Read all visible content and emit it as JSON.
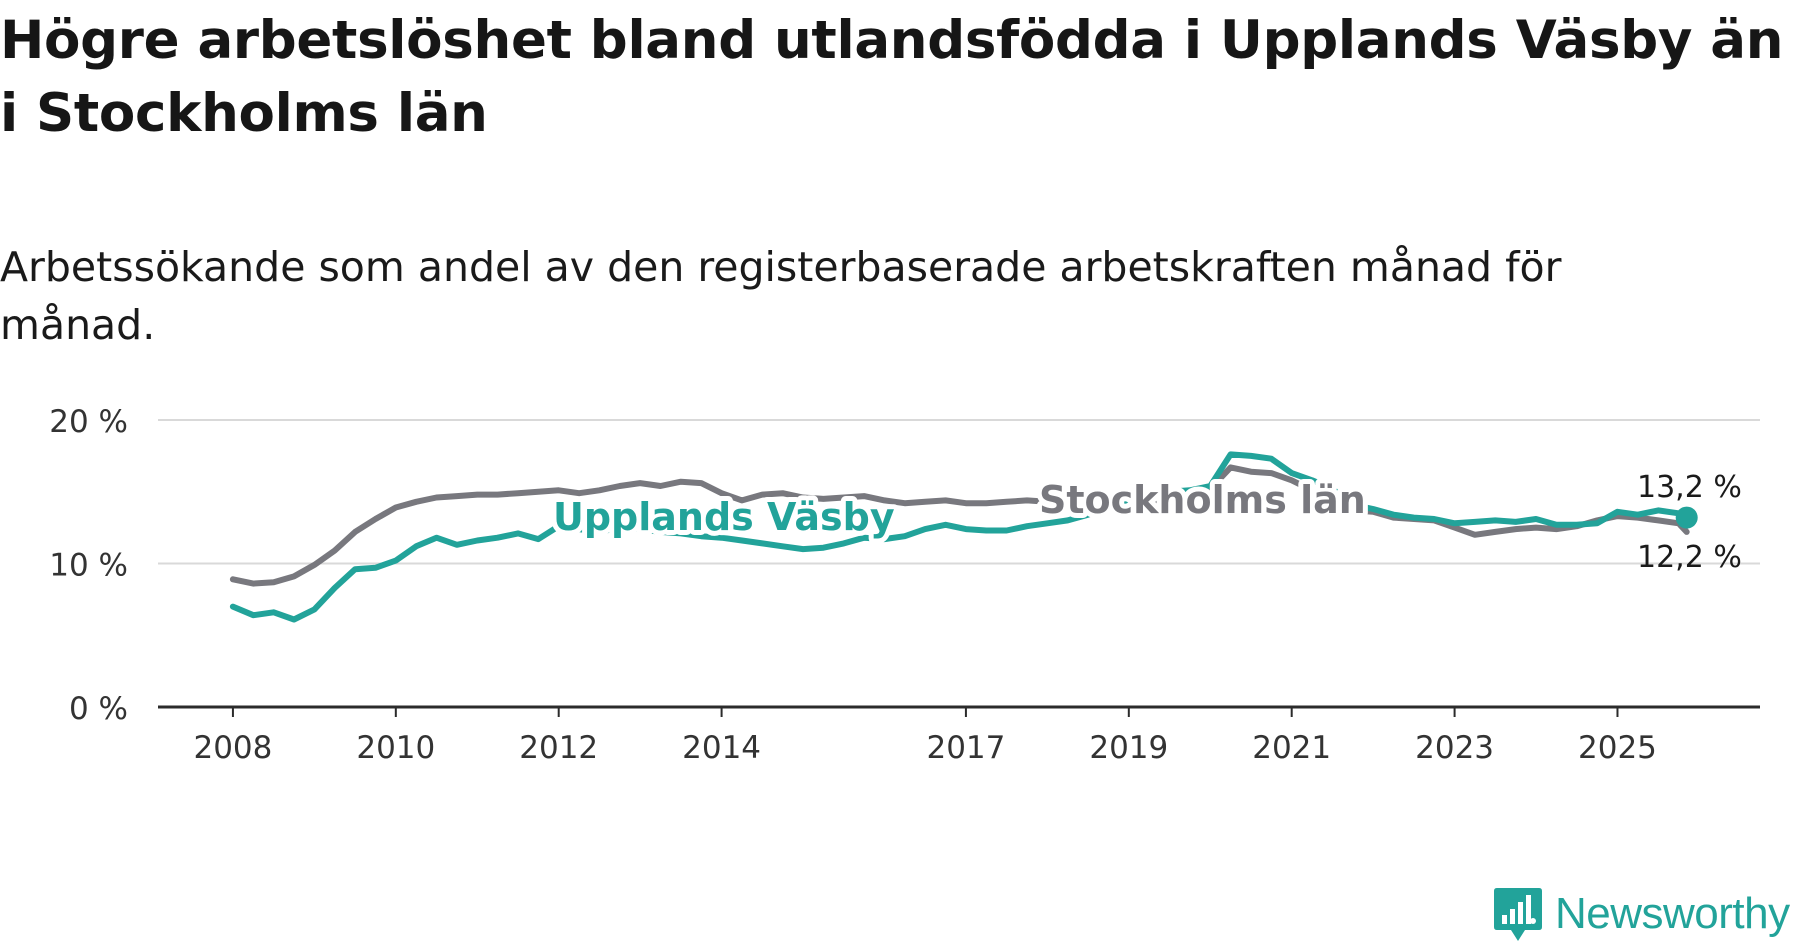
{
  "title": "Högre arbetslöshet bland utlandsfödda i Upplands Väsby än i Stockholms län",
  "subtitle": "Arbetssökande som andel av den registerbaserade arbetskraften månad för månad.",
  "brand": {
    "name": "Newsworthy"
  },
  "colors": {
    "accent": "#22a39a",
    "gray_line": "#78787e",
    "axis": "#2b2b2b",
    "grid": "#d9d9d9"
  },
  "chart_data": {
    "type": "line",
    "title": "Högre arbetslöshet bland utlandsfödda i Upplands Väsby än i Stockholms län",
    "subtitle": "Arbetssökande som andel av den registerbaserade arbetskraften månad för månad.",
    "xlabel": "",
    "ylabel": "",
    "ylim": [
      0,
      20
    ],
    "yticks": [
      {
        "value": 0,
        "label": "0 %"
      },
      {
        "value": 10,
        "label": "10 %"
      },
      {
        "value": 20,
        "label": "20 %"
      }
    ],
    "xticks": [
      {
        "value": 2008,
        "label": "2008"
      },
      {
        "value": 2010,
        "label": "2010"
      },
      {
        "value": 2012,
        "label": "2012"
      },
      {
        "value": 2014,
        "label": "2014"
      },
      {
        "value": 2017,
        "label": "2017"
      },
      {
        "value": 2019,
        "label": "2019"
      },
      {
        "value": 2021,
        "label": "2021"
      },
      {
        "value": 2023,
        "label": "2023"
      },
      {
        "value": 2025,
        "label": "2025"
      }
    ],
    "xlim": [
      2007.08,
      2026.75
    ],
    "grid": true,
    "series": [
      {
        "name": "Stockholms län",
        "color": "#78787e",
        "label": "Stockholms län",
        "end_label": "12,2 %",
        "x": [
          2008.0,
          2008.25,
          2008.5,
          2008.75,
          2009.0,
          2009.25,
          2009.5,
          2009.75,
          2010.0,
          2010.25,
          2010.5,
          2010.75,
          2011.0,
          2011.25,
          2011.5,
          2011.75,
          2012.0,
          2012.25,
          2012.5,
          2012.75,
          2013.0,
          2013.25,
          2013.5,
          2013.75,
          2014.0,
          2014.25,
          2014.5,
          2014.75,
          2015.0,
          2015.25,
          2015.5,
          2015.75,
          2016.0,
          2016.25,
          2016.5,
          2016.75,
          2017.0,
          2017.25,
          2017.5,
          2017.75,
          2018.0,
          2018.25,
          2018.5,
          2018.75,
          2019.0,
          2019.25,
          2019.5,
          2019.75,
          2020.0,
          2020.25,
          2020.5,
          2020.75,
          2021.0,
          2021.25,
          2021.5,
          2021.75,
          2022.0,
          2022.25,
          2022.5,
          2022.75,
          2023.0,
          2023.25,
          2023.5,
          2023.75,
          2024.0,
          2024.25,
          2024.5,
          2024.75,
          2025.0,
          2025.25,
          2025.5,
          2025.75,
          2025.85
        ],
        "values": [
          8.9,
          8.6,
          8.7,
          9.1,
          9.9,
          10.9,
          12.2,
          13.1,
          13.9,
          14.3,
          14.6,
          14.7,
          14.8,
          14.8,
          14.9,
          15.0,
          15.1,
          14.9,
          15.1,
          15.4,
          15.6,
          15.4,
          15.7,
          15.6,
          14.9,
          14.4,
          14.8,
          14.9,
          14.6,
          14.5,
          14.6,
          14.7,
          14.4,
          14.2,
          14.3,
          14.4,
          14.2,
          14.2,
          14.3,
          14.4,
          14.3,
          14.2,
          14.1,
          13.9,
          14.0,
          14.1,
          14.3,
          14.5,
          15.2,
          16.7,
          16.4,
          16.3,
          15.8,
          15.1,
          14.2,
          13.7,
          13.6,
          13.2,
          13.1,
          13.0,
          12.5,
          12.0,
          12.2,
          12.4,
          12.5,
          12.4,
          12.6,
          13.0,
          13.3,
          13.2,
          13.0,
          12.8,
          12.2
        ]
      },
      {
        "name": "Upplands Väsby",
        "color": "#22a39a",
        "label": "Upplands Väsby",
        "end_label": "13,2 %",
        "x": [
          2008.0,
          2008.25,
          2008.5,
          2008.75,
          2009.0,
          2009.25,
          2009.5,
          2009.75,
          2010.0,
          2010.25,
          2010.5,
          2010.75,
          2011.0,
          2011.25,
          2011.5,
          2011.75,
          2012.0,
          2012.25,
          2012.5,
          2012.75,
          2013.0,
          2013.25,
          2013.5,
          2013.75,
          2014.0,
          2014.25,
          2014.5,
          2014.75,
          2015.0,
          2015.25,
          2015.5,
          2015.75,
          2016.0,
          2016.25,
          2016.5,
          2016.75,
          2017.0,
          2017.25,
          2017.5,
          2017.75,
          2018.0,
          2018.25,
          2018.5,
          2018.75,
          2019.0,
          2019.25,
          2019.5,
          2019.75,
          2020.0,
          2020.25,
          2020.5,
          2020.75,
          2021.0,
          2021.25,
          2021.5,
          2021.75,
          2022.0,
          2022.25,
          2022.5,
          2022.75,
          2023.0,
          2023.25,
          2023.5,
          2023.75,
          2024.0,
          2024.25,
          2024.5,
          2024.75,
          2025.0,
          2025.25,
          2025.5,
          2025.75,
          2025.85
        ],
        "values": [
          7.0,
          6.4,
          6.6,
          6.1,
          6.8,
          8.3,
          9.6,
          9.7,
          10.2,
          11.2,
          11.8,
          11.3,
          11.6,
          11.8,
          12.1,
          11.7,
          12.6,
          12.4,
          12.2,
          12.5,
          12.4,
          12.2,
          12.1,
          11.9,
          11.8,
          11.6,
          11.4,
          11.2,
          11.0,
          11.1,
          11.4,
          11.8,
          11.7,
          11.9,
          12.4,
          12.7,
          12.4,
          12.3,
          12.3,
          12.6,
          12.8,
          13.0,
          13.4,
          13.9,
          14.2,
          14.6,
          15.0,
          15.1,
          15.4,
          17.6,
          17.5,
          17.3,
          16.3,
          15.8,
          15.2,
          14.1,
          13.8,
          13.4,
          13.2,
          13.1,
          12.8,
          12.9,
          13.0,
          12.9,
          13.1,
          12.7,
          12.7,
          12.8,
          13.6,
          13.4,
          13.7,
          13.5,
          13.2
        ]
      }
    ]
  }
}
